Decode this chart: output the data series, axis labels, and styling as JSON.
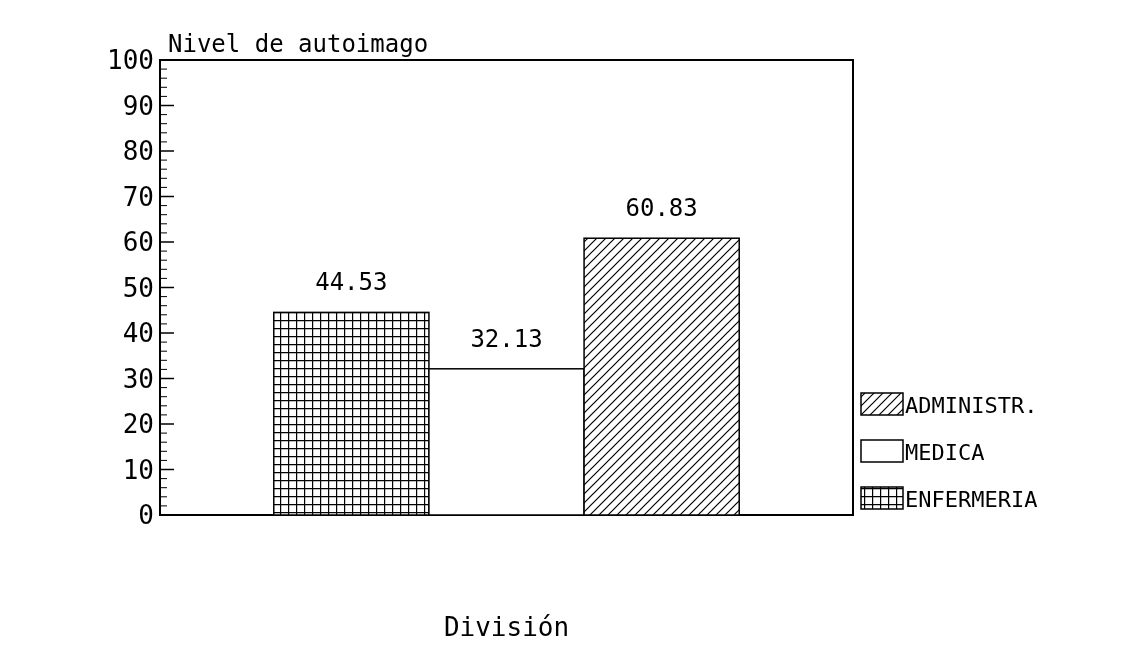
{
  "chart_data": {
    "type": "bar",
    "ylabel": "Nivel de autoimago",
    "xlabel": "División",
    "categories": [
      null
    ],
    "series": [
      {
        "name": "ENFERMERIA",
        "color": "#000000",
        "values": [
          44.53
        ]
      },
      {
        "name": "MEDICA",
        "color": "#ffffff",
        "values": [
          32.13
        ]
      },
      {
        "name": "ADMINISTR.",
        "color": "#000000",
        "values": [
          60.83
        ]
      }
    ],
    "ylim": [
      0,
      100
    ],
    "yticks": [
      0,
      10,
      20,
      30,
      40,
      50,
      60,
      70,
      80,
      90,
      100
    ],
    "data_labels": true,
    "legend": "right",
    "grid": false
  }
}
